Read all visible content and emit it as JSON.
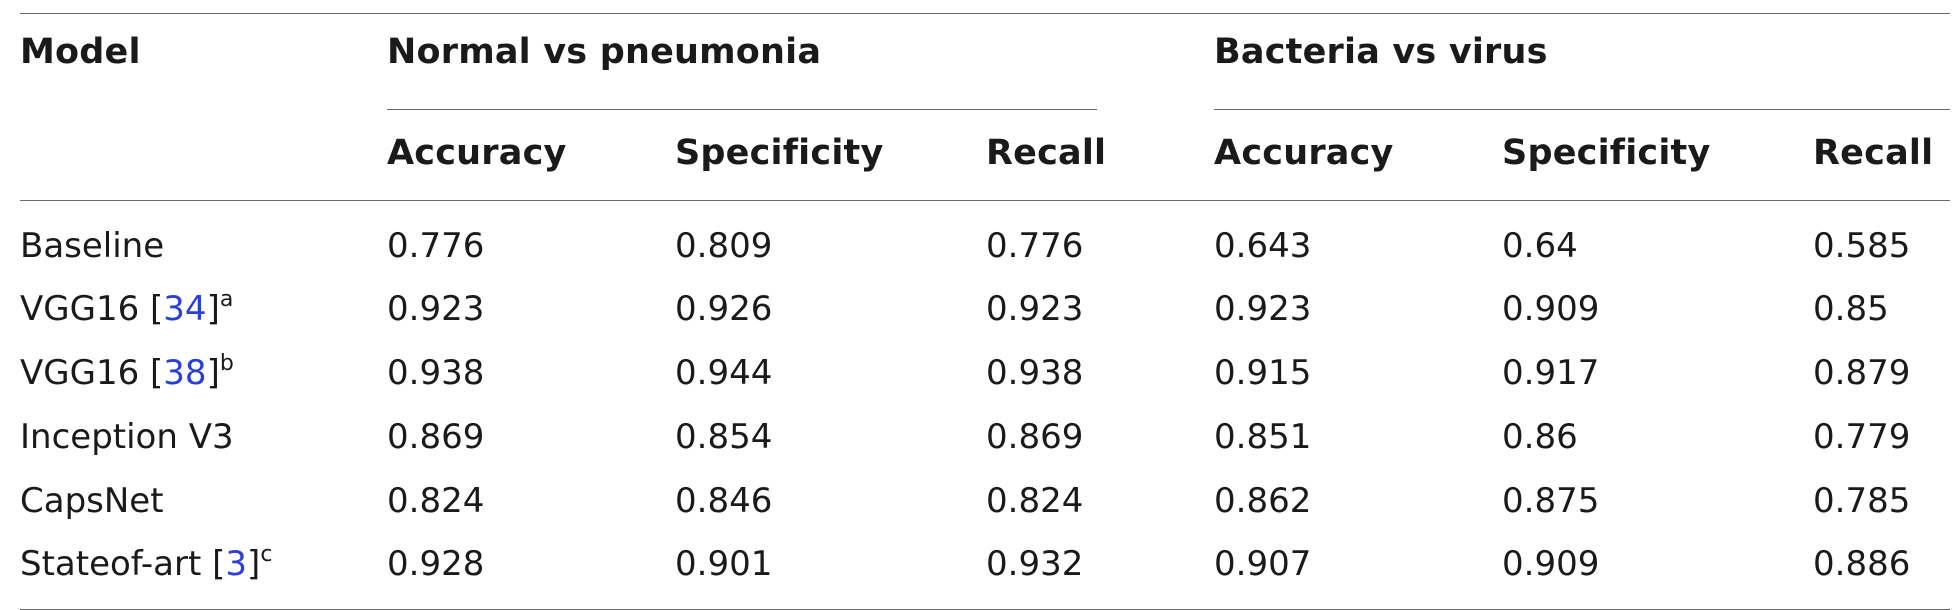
{
  "table": {
    "header": {
      "model": "Model",
      "groups": [
        {
          "label": "Normal vs pneumonia"
        },
        {
          "label": "Bacteria vs virus"
        }
      ],
      "subheaders": [
        "Accuracy",
        "Specificity",
        "Recall",
        "Accuracy",
        "Specificity",
        "Recall"
      ]
    },
    "rows": [
      {
        "model": "Baseline",
        "ref": "",
        "note": "",
        "values": [
          "0.776",
          "0.809",
          "0.776",
          "0.643",
          "0.64",
          "0.585"
        ]
      },
      {
        "model": "VGG16 ",
        "ref": "34",
        "note": "a",
        "values": [
          "0.923",
          "0.926",
          "0.923",
          "0.923",
          "0.909",
          "0.85"
        ]
      },
      {
        "model": "VGG16 ",
        "ref": "38",
        "note": "b",
        "values": [
          "0.938",
          "0.944",
          "0.938",
          "0.915",
          "0.917",
          "0.879"
        ]
      },
      {
        "model": "Inception V3",
        "ref": "",
        "note": "",
        "values": [
          "0.869",
          "0.854",
          "0.869",
          "0.851",
          "0.86",
          "0.779"
        ]
      },
      {
        "model": "CapsNet",
        "ref": "",
        "note": "",
        "values": [
          "0.824",
          "0.846",
          "0.824",
          "0.862",
          "0.875",
          "0.785"
        ]
      },
      {
        "model": "Stateof-art ",
        "ref": "3",
        "note": "c",
        "values": [
          "0.928",
          "0.901",
          "0.932",
          "0.907",
          "0.909",
          "0.886"
        ]
      }
    ],
    "colors": {
      "text": "#1a1a1a",
      "rule": "#6b6b6b",
      "reference_link": "#2b3fd6"
    }
  }
}
